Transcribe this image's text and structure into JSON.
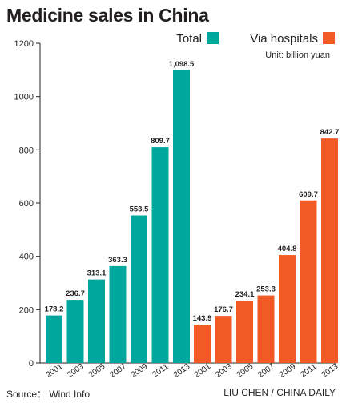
{
  "title": "Medicine sales in China",
  "unit": "Unit: billion yuan",
  "source": "Source： Wind Info",
  "credit": "LIU CHEN / CHINA DAILY",
  "colors": {
    "total": "#00a79d",
    "hospitals": "#f15a24",
    "axis": "#231f20"
  },
  "chart_data": {
    "type": "bar",
    "ylim": [
      0,
      1200
    ],
    "yticks": [
      0,
      200,
      400,
      600,
      800,
      1000,
      1200
    ],
    "grid": false,
    "legend_position": "top-right",
    "series": [
      {
        "name": "Total",
        "categories": [
          "2001",
          "2003",
          "2005",
          "2007",
          "2009",
          "2011",
          "2013"
        ],
        "values": [
          178.2,
          236.7,
          313.1,
          363.3,
          553.5,
          809.7,
          1098.5
        ],
        "labels": [
          "178.2",
          "236.7",
          "313.1",
          "363.3",
          "553.5",
          "809.7",
          "1,098.5"
        ]
      },
      {
        "name": "Via hospitals",
        "categories": [
          "2001",
          "2003",
          "2005",
          "2007",
          "2009",
          "2011",
          "2013"
        ],
        "values": [
          143.9,
          176.7,
          234.1,
          253.3,
          404.8,
          609.7,
          842.7
        ],
        "labels": [
          "143.9",
          "176.7",
          "234.1",
          "253.3",
          "404.8",
          "609.7",
          "842.7"
        ]
      }
    ]
  }
}
